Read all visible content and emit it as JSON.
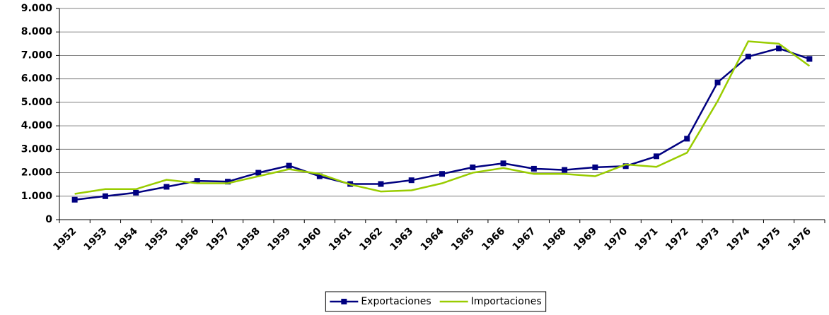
{
  "chart_data": {
    "type": "line",
    "categories": [
      "1952",
      "1953",
      "1954",
      "1955",
      "1956",
      "1957",
      "1958",
      "1959",
      "1960",
      "1961",
      "1962",
      "1963",
      "1964",
      "1965",
      "1966",
      "1967",
      "1968",
      "1969",
      "1970",
      "1971",
      "1972",
      "1973",
      "1974",
      "1975",
      "1976"
    ],
    "series": [
      {
        "name": "Exportaciones",
        "color": "#000080",
        "marker": "square",
        "values": [
          850,
          1000,
          1150,
          1400,
          1650,
          1620,
          2000,
          2300,
          1850,
          1520,
          1520,
          1680,
          1950,
          2230,
          2400,
          2170,
          2120,
          2230,
          2280,
          2700,
          3450,
          5850,
          6950,
          7300,
          6850
        ]
      },
      {
        "name": "Importaciones",
        "color": "#99cc00",
        "values": [
          1100,
          1300,
          1300,
          1700,
          1550,
          1550,
          1850,
          2150,
          1950,
          1500,
          1200,
          1250,
          1550,
          2000,
          2200,
          1950,
          1950,
          1850,
          2350,
          2250,
          2850,
          5050,
          7600,
          7500,
          6550
        ]
      }
    ],
    "ylim": [
      0,
      9000
    ],
    "yticks": [
      0,
      {
        "value": 1000,
        "label": "1.000"
      },
      {
        "value": 2000,
        "label": "2.000"
      },
      {
        "value": 3000,
        "label": "3.000"
      },
      {
        "value": 4000,
        "label": "4.000"
      },
      {
        "value": 5000,
        "label": "5.000"
      },
      {
        "value": 6000,
        "label": "6.000"
      },
      {
        "value": 7000,
        "label": "7.000"
      },
      {
        "value": 8000,
        "label": "8.000"
      },
      {
        "value": 9000,
        "label": "9.000"
      }
    ],
    "grid": true,
    "legend": "bottom"
  }
}
